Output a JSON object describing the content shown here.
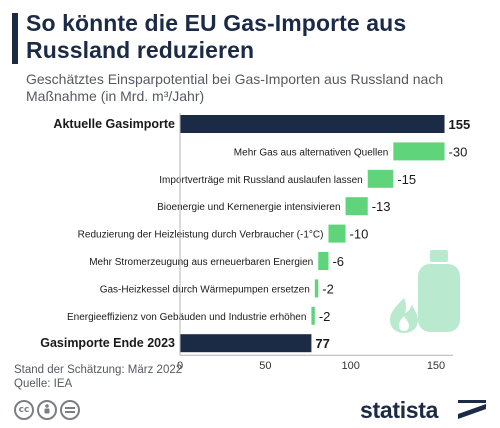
{
  "header": {
    "title": "So könnte die EU Gas-Importe aus Russland reduzieren",
    "subtitle": "Geschätztes Einsparpotential bei Gas-Importen aus Russland nach Maßnahme (in Mrd. m³/Jahr)"
  },
  "colors": {
    "total": "#1b2a45",
    "reduction": "#5fd47a",
    "accent": "#1b2a45",
    "illustration": "#b9ead0"
  },
  "chart_data": {
    "type": "bar",
    "subtype": "waterfall",
    "orientation": "horizontal",
    "categories": [
      "Aktuelle Gasimporte",
      "Mehr Gas aus alternativen Quellen",
      "Importverträge mit Russland auslaufen lassen",
      "Bioenergie und Kernenergie intensivieren",
      "Reduzierung der Heizleistung durch Verbraucher (-1°C)",
      "Mehr Stromerzeugung aus erneuerbaren Energien",
      "Gas-Heizkessel durch Wärmepumpen ersetzen",
      "Energieeffizienz von Gebäuden und Industrie erhöhen",
      "Gasimporte Ende 2023"
    ],
    "values": [
      155,
      -30,
      -15,
      -13,
      -10,
      -6,
      -2,
      -2,
      77
    ],
    "value_labels": [
      "155",
      "-30",
      "-15",
      "-13",
      "-10",
      "-6",
      "-2",
      "-2",
      "77"
    ],
    "is_total": [
      true,
      false,
      false,
      false,
      false,
      false,
      false,
      false,
      true
    ],
    "xlim": [
      0,
      160
    ],
    "xticks": [
      0,
      50,
      100,
      150
    ],
    "grid": false,
    "legend": "none"
  },
  "footer": {
    "note": "Stand der Schätzung: März 2022",
    "source": "Quelle: IEA",
    "license_icons": [
      "cc-icon",
      "by-person-icon",
      "nd-equals-icon"
    ],
    "brand": "statista"
  }
}
